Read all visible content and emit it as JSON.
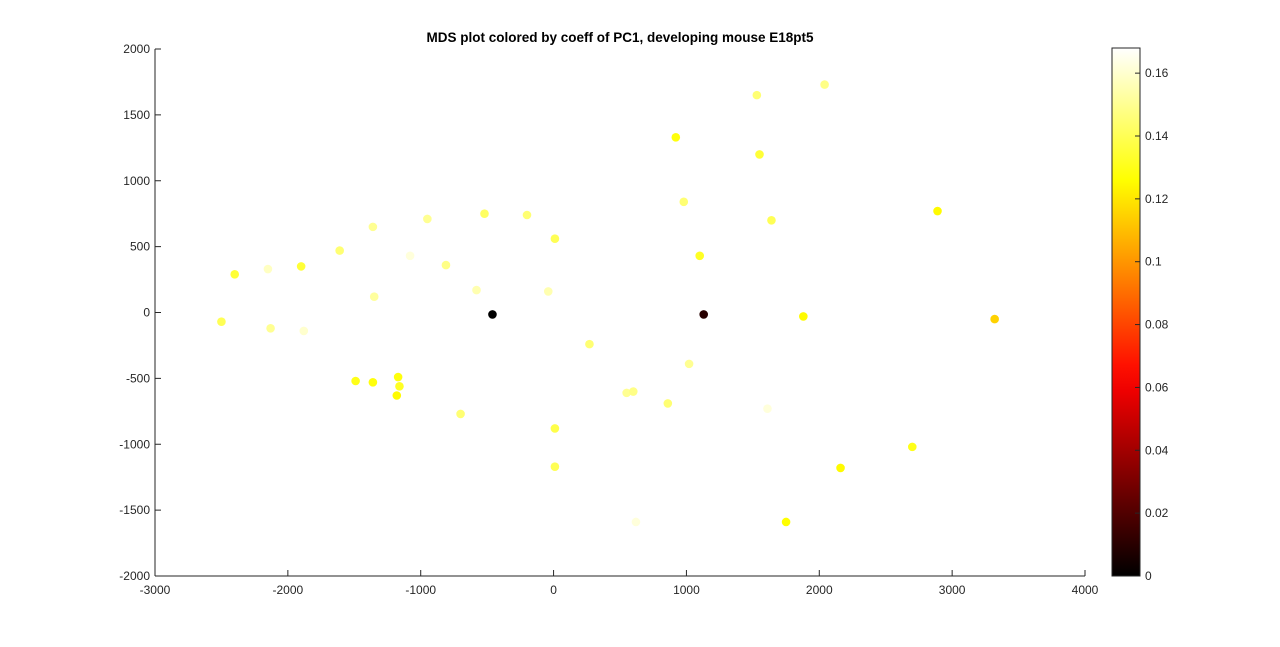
{
  "chart_data": {
    "type": "scatter",
    "title": "MDS plot colored by coeff of PC1, developing mouse E18pt5",
    "xlabel": "",
    "ylabel": "",
    "xlim": [
      -3000,
      4000
    ],
    "ylim": [
      -2000,
      2000
    ],
    "xticks": [
      "-3000",
      "-2000",
      "-1000",
      "0",
      "1000",
      "2000",
      "3000",
      "4000"
    ],
    "yticks": [
      "-2000",
      "-1500",
      "-1000",
      "-500",
      "0",
      "500",
      "1000",
      "1500",
      "2000"
    ],
    "grid": false,
    "colormap": "hot",
    "colorbar": {
      "range": [
        0,
        0.168
      ],
      "ticks": [
        "0",
        "0.02",
        "0.04",
        "0.06",
        "0.08",
        "0.1",
        "0.12",
        "0.14",
        "0.16"
      ],
      "location": "right"
    },
    "points": [
      {
        "x": -2500,
        "y": -70,
        "c": 0.14
      },
      {
        "x": -2400,
        "y": 290,
        "c": 0.135
      },
      {
        "x": -2150,
        "y": 330,
        "c": 0.158
      },
      {
        "x": -2130,
        "y": -120,
        "c": 0.15
      },
      {
        "x": -1900,
        "y": 350,
        "c": 0.135
      },
      {
        "x": -1880,
        "y": -140,
        "c": 0.16
      },
      {
        "x": -1610,
        "y": 470,
        "c": 0.145
      },
      {
        "x": -1490,
        "y": -520,
        "c": 0.13
      },
      {
        "x": -1360,
        "y": 650,
        "c": 0.15
      },
      {
        "x": -1360,
        "y": -530,
        "c": 0.128
      },
      {
        "x": -1350,
        "y": 120,
        "c": 0.152
      },
      {
        "x": -1170,
        "y": -490,
        "c": 0.128
      },
      {
        "x": -1160,
        "y": -560,
        "c": 0.132
      },
      {
        "x": -1180,
        "y": -630,
        "c": 0.125
      },
      {
        "x": -1080,
        "y": 430,
        "c": 0.162
      },
      {
        "x": -950,
        "y": 710,
        "c": 0.15
      },
      {
        "x": -810,
        "y": 360,
        "c": 0.148
      },
      {
        "x": -700,
        "y": -770,
        "c": 0.145
      },
      {
        "x": -580,
        "y": 170,
        "c": 0.155
      },
      {
        "x": -520,
        "y": 750,
        "c": 0.142
      },
      {
        "x": -460,
        "y": -15,
        "c": 0.0
      },
      {
        "x": -200,
        "y": 740,
        "c": 0.145
      },
      {
        "x": -40,
        "y": 160,
        "c": 0.155
      },
      {
        "x": 10,
        "y": 560,
        "c": 0.14
      },
      {
        "x": 10,
        "y": -880,
        "c": 0.138
      },
      {
        "x": 10,
        "y": -1170,
        "c": 0.14
      },
      {
        "x": 270,
        "y": -240,
        "c": 0.145
      },
      {
        "x": 550,
        "y": -610,
        "c": 0.15
      },
      {
        "x": 600,
        "y": -600,
        "c": 0.148
      },
      {
        "x": 620,
        "y": -1590,
        "c": 0.162
      },
      {
        "x": 860,
        "y": -690,
        "c": 0.145
      },
      {
        "x": 920,
        "y": 1330,
        "c": 0.128
      },
      {
        "x": 980,
        "y": 840,
        "c": 0.145
      },
      {
        "x": 1020,
        "y": -390,
        "c": 0.15
      },
      {
        "x": 1100,
        "y": 430,
        "c": 0.132
      },
      {
        "x": 1130,
        "y": -15,
        "c": 0.01
      },
      {
        "x": 1530,
        "y": 1650,
        "c": 0.145
      },
      {
        "x": 1550,
        "y": 1200,
        "c": 0.135
      },
      {
        "x": 1610,
        "y": -730,
        "c": 0.162
      },
      {
        "x": 1640,
        "y": 700,
        "c": 0.14
      },
      {
        "x": 1750,
        "y": -1590,
        "c": 0.126
      },
      {
        "x": 1880,
        "y": -30,
        "c": 0.125
      },
      {
        "x": 2040,
        "y": 1730,
        "c": 0.148
      },
      {
        "x": 2160,
        "y": -1180,
        "c": 0.125
      },
      {
        "x": 2700,
        "y": -1020,
        "c": 0.13
      },
      {
        "x": 2890,
        "y": 770,
        "c": 0.125
      },
      {
        "x": 3320,
        "y": -50,
        "c": 0.115
      }
    ]
  }
}
